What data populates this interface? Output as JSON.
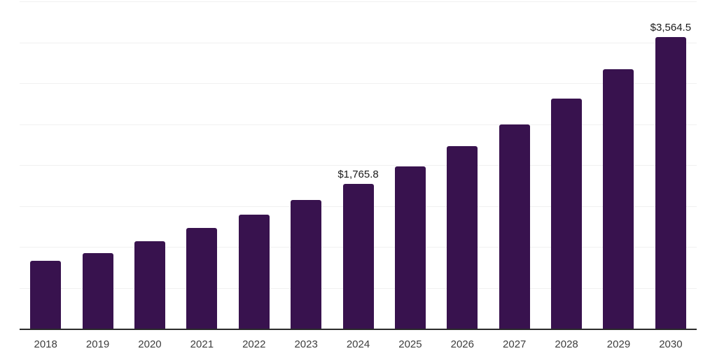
{
  "chart_data": {
    "type": "bar",
    "title": "",
    "xlabel": "",
    "ylabel": "",
    "ylim": [
      0,
      4000
    ],
    "gridline_interval": 500,
    "grid": true,
    "legend": false,
    "y_axis_tick_labels_visible": false,
    "categories": [
      "2018",
      "2019",
      "2020",
      "2021",
      "2022",
      "2023",
      "2024",
      "2025",
      "2026",
      "2027",
      "2028",
      "2029",
      "2030"
    ],
    "values": [
      825,
      920,
      1065,
      1230,
      1395,
      1575,
      1765.8,
      1985,
      2230,
      2500,
      2810,
      3170,
      3564.5
    ],
    "point_labels": [
      null,
      null,
      null,
      null,
      null,
      null,
      "$1,765.8",
      null,
      null,
      null,
      null,
      null,
      "$3,564.5"
    ]
  },
  "colors": {
    "bar": "#38124E",
    "gridline": "#F0F0F0",
    "axis": "#2B2B2B",
    "tick_label": "#3D3D3D",
    "data_label": "#1A1A1A",
    "background": "#FFFFFF"
  }
}
